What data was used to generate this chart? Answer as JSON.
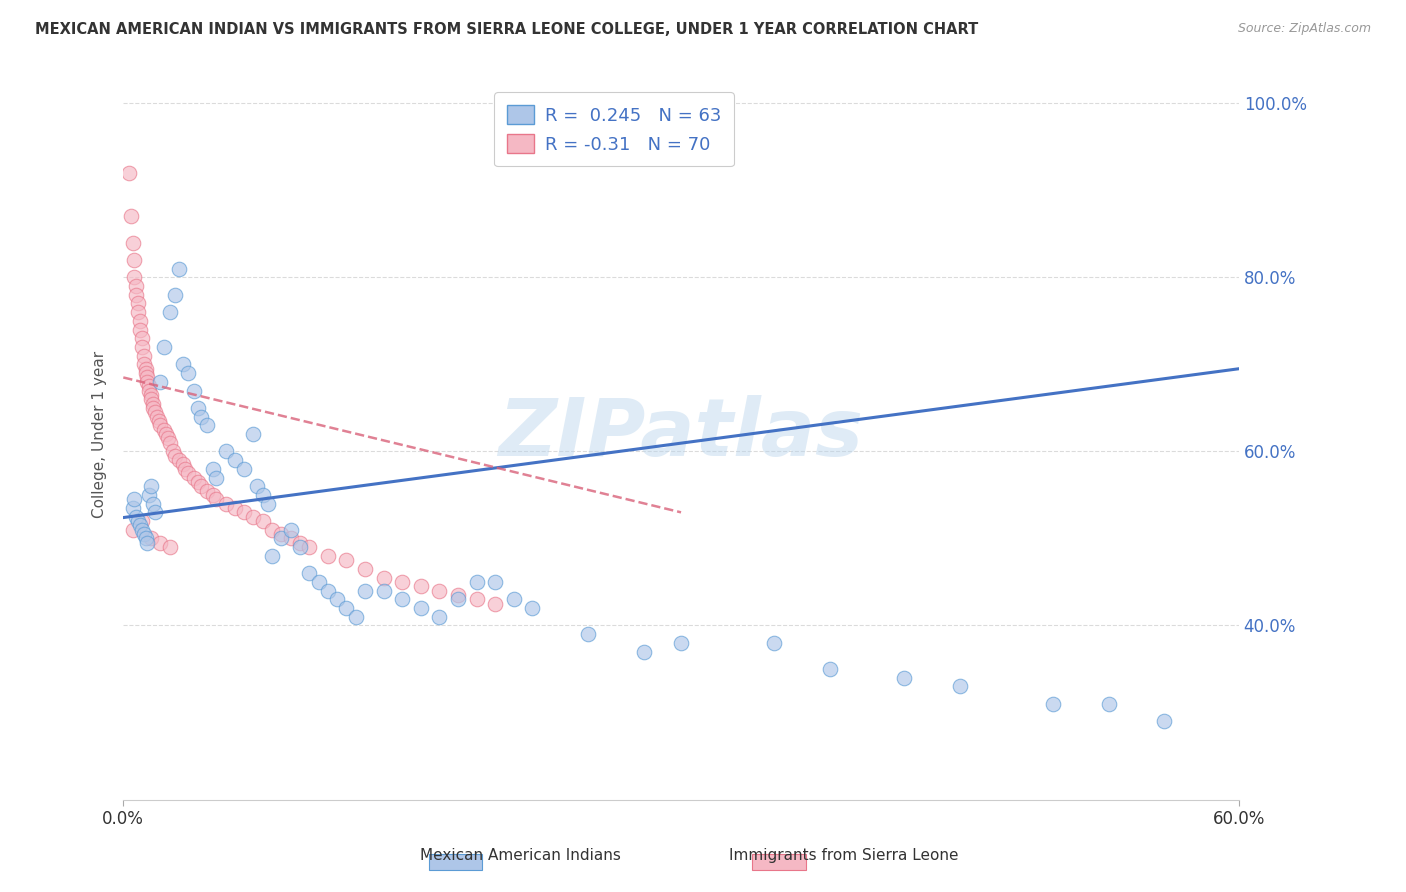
{
  "title": "MEXICAN AMERICAN INDIAN VS IMMIGRANTS FROM SIERRA LEONE COLLEGE, UNDER 1 YEAR CORRELATION CHART",
  "source": "Source: ZipAtlas.com",
  "ylabel": "College, Under 1 year",
  "xmin": 0.0,
  "xmax": 0.6,
  "ymin": 0.2,
  "ymax": 1.04,
  "xtick_positions": [
    0.0,
    0.6
  ],
  "xtick_labels": [
    "0.0%",
    "60.0%"
  ],
  "ytick_positions": [
    0.4,
    0.6,
    0.8,
    1.0
  ],
  "ytick_labels": [
    "40.0%",
    "60.0%",
    "80.0%",
    "100.0%"
  ],
  "blue_R": 0.245,
  "blue_N": 63,
  "pink_R": -0.31,
  "pink_N": 70,
  "blue_color": "#aec6e8",
  "pink_color": "#f5b8c4",
  "blue_edge_color": "#5b9bd5",
  "pink_edge_color": "#e8768a",
  "blue_line_color": "#4472c4",
  "pink_line_color": "#d9627a",
  "legend_label_blue": "Mexican American Indians",
  "legend_label_pink": "Immigrants from Sierra Leone",
  "blue_line_x0": 0.0,
  "blue_line_x1": 0.6,
  "blue_line_y0": 0.524,
  "blue_line_y1": 0.695,
  "pink_line_x0": 0.0,
  "pink_line_x1": 0.3,
  "pink_line_y0": 0.685,
  "pink_line_y1": 0.53,
  "blue_scatter_x": [
    0.005,
    0.006,
    0.007,
    0.008,
    0.009,
    0.01,
    0.011,
    0.012,
    0.013,
    0.014,
    0.015,
    0.016,
    0.017,
    0.02,
    0.022,
    0.025,
    0.028,
    0.03,
    0.032,
    0.035,
    0.038,
    0.04,
    0.042,
    0.045,
    0.048,
    0.05,
    0.055,
    0.06,
    0.065,
    0.07,
    0.072,
    0.075,
    0.078,
    0.08,
    0.085,
    0.09,
    0.095,
    0.1,
    0.105,
    0.11,
    0.115,
    0.12,
    0.125,
    0.13,
    0.14,
    0.15,
    0.16,
    0.17,
    0.18,
    0.19,
    0.2,
    0.21,
    0.22,
    0.25,
    0.28,
    0.3,
    0.35,
    0.38,
    0.42,
    0.45,
    0.5,
    0.53,
    0.56
  ],
  "blue_scatter_y": [
    0.535,
    0.545,
    0.525,
    0.52,
    0.515,
    0.51,
    0.505,
    0.5,
    0.495,
    0.55,
    0.56,
    0.54,
    0.53,
    0.68,
    0.72,
    0.76,
    0.78,
    0.81,
    0.7,
    0.69,
    0.67,
    0.65,
    0.64,
    0.63,
    0.58,
    0.57,
    0.6,
    0.59,
    0.58,
    0.62,
    0.56,
    0.55,
    0.54,
    0.48,
    0.5,
    0.51,
    0.49,
    0.46,
    0.45,
    0.44,
    0.43,
    0.42,
    0.41,
    0.44,
    0.44,
    0.43,
    0.42,
    0.41,
    0.43,
    0.45,
    0.45,
    0.43,
    0.42,
    0.39,
    0.37,
    0.38,
    0.38,
    0.35,
    0.34,
    0.33,
    0.31,
    0.31,
    0.29
  ],
  "pink_scatter_x": [
    0.003,
    0.004,
    0.005,
    0.006,
    0.006,
    0.007,
    0.007,
    0.008,
    0.008,
    0.009,
    0.009,
    0.01,
    0.01,
    0.011,
    0.011,
    0.012,
    0.012,
    0.013,
    0.013,
    0.014,
    0.014,
    0.015,
    0.015,
    0.016,
    0.016,
    0.017,
    0.018,
    0.019,
    0.02,
    0.022,
    0.023,
    0.024,
    0.025,
    0.027,
    0.028,
    0.03,
    0.032,
    0.033,
    0.035,
    0.038,
    0.04,
    0.042,
    0.045,
    0.048,
    0.05,
    0.055,
    0.06,
    0.065,
    0.07,
    0.075,
    0.08,
    0.085,
    0.09,
    0.095,
    0.1,
    0.11,
    0.12,
    0.13,
    0.14,
    0.15,
    0.16,
    0.17,
    0.18,
    0.19,
    0.2,
    0.005,
    0.01,
    0.015,
    0.02,
    0.025
  ],
  "pink_scatter_y": [
    0.92,
    0.87,
    0.84,
    0.82,
    0.8,
    0.79,
    0.78,
    0.77,
    0.76,
    0.75,
    0.74,
    0.73,
    0.72,
    0.71,
    0.7,
    0.695,
    0.69,
    0.685,
    0.68,
    0.675,
    0.67,
    0.665,
    0.66,
    0.655,
    0.65,
    0.645,
    0.64,
    0.635,
    0.63,
    0.625,
    0.62,
    0.615,
    0.61,
    0.6,
    0.595,
    0.59,
    0.585,
    0.58,
    0.575,
    0.57,
    0.565,
    0.56,
    0.555,
    0.55,
    0.545,
    0.54,
    0.535,
    0.53,
    0.525,
    0.52,
    0.51,
    0.505,
    0.5,
    0.495,
    0.49,
    0.48,
    0.475,
    0.465,
    0.455,
    0.45,
    0.445,
    0.44,
    0.435,
    0.43,
    0.425,
    0.51,
    0.52,
    0.5,
    0.495,
    0.49
  ],
  "watermark": "ZIPatlas",
  "background_color": "#ffffff",
  "grid_color": "#d8d8d8"
}
